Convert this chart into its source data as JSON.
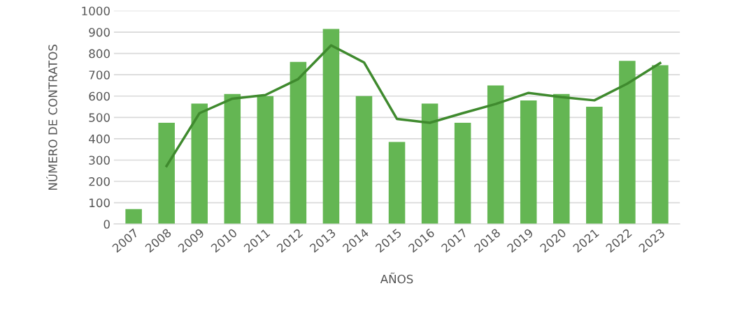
{
  "chart_data": {
    "type": "bar",
    "xlabel": "AÑOS",
    "ylabel": "NÚMERO DE CONTRATOS",
    "categories": [
      "2007",
      "2008",
      "2009",
      "2010",
      "2011",
      "2012",
      "2013",
      "2014",
      "2015",
      "2016",
      "2017",
      "2018",
      "2019",
      "2020",
      "2021",
      "2022",
      "2023"
    ],
    "series": [
      {
        "color": "#64b653",
        "values": [
          70,
          475,
          565,
          610,
          600,
          760,
          915,
          600,
          385,
          565,
          475,
          650,
          580,
          610,
          550,
          765,
          745
        ]
      },
      {
        "type": "line",
        "color": "#3f8a2e",
        "values": [
          null,
          272,
          520,
          588,
          605,
          680,
          838,
          758,
          493,
          475,
          520,
          563,
          615,
          595,
          580,
          658,
          755
        ]
      }
    ],
    "ylim": [
      0,
      1000
    ],
    "yticks": [
      0,
      100,
      200,
      300,
      400,
      500,
      600,
      700,
      800,
      900,
      1000
    ],
    "grid": "y"
  }
}
